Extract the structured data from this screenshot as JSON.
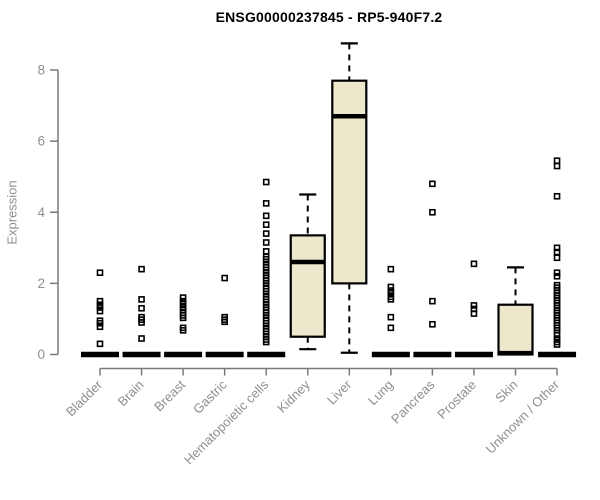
{
  "chart_data": {
    "type": "boxplot",
    "title": "ENSG00000237845 - RP5-940F7.2",
    "ylabel": "Expression",
    "xlabel": "",
    "yticks": [
      0,
      2,
      4,
      6,
      8
    ],
    "ylim": [
      0,
      8.9
    ],
    "grid": false,
    "legend": false,
    "categories": [
      "Bladder",
      "Brain",
      "Breast",
      "Gastric",
      "Hematopoietic cells",
      "Kidney",
      "Liver",
      "Lung",
      "Pancreas",
      "Prostate",
      "Skin",
      "Unknown / Other"
    ],
    "boxes": [
      {
        "category": "Bladder",
        "whisker_low": 0,
        "q1": 0,
        "median": 0,
        "q3": 0,
        "whisker_high": 0,
        "outliers": [
          2.3,
          1.5,
          1.4,
          1.32,
          1.22,
          0.95,
          0.88,
          0.78,
          0.3
        ]
      },
      {
        "category": "Brain",
        "whisker_low": 0,
        "q1": 0,
        "median": 0,
        "q3": 0,
        "whisker_high": 0,
        "outliers": [
          2.4,
          1.55,
          1.3,
          1.05,
          0.98,
          0.9,
          0.45
        ]
      },
      {
        "category": "Breast",
        "whisker_low": 0,
        "q1": 0,
        "median": 0,
        "q3": 0,
        "whisker_high": 0,
        "outliers": [
          1.6,
          1.5,
          1.42,
          1.33,
          1.25,
          1.17,
          1.1,
          1.03,
          0.75,
          0.68
        ]
      },
      {
        "category": "Gastric",
        "whisker_low": 0,
        "q1": 0,
        "median": 0,
        "q3": 0,
        "whisker_high": 0,
        "outliers": [
          2.15,
          1.05,
          0.98,
          0.92
        ]
      },
      {
        "category": "Hematopoietic cells",
        "whisker_low": 0,
        "q1": 0,
        "median": 0,
        "q3": 0,
        "whisker_high": 0,
        "outliers": [
          4.85,
          4.25,
          3.9,
          3.65,
          3.4,
          3.15,
          2.9,
          2.75,
          2.68,
          2.6,
          2.52,
          2.45,
          2.38,
          2.3,
          2.22,
          2.15,
          2.08,
          2.0,
          1.92,
          1.85,
          1.78,
          1.7,
          1.62,
          1.55,
          1.48,
          1.4,
          1.32,
          1.25,
          1.18,
          1.1,
          1.02,
          0.95,
          0.88,
          0.8,
          0.72,
          0.65,
          0.58,
          0.5,
          0.42,
          0.35
        ]
      },
      {
        "category": "Kidney",
        "whisker_low": 0.15,
        "q1": 0.5,
        "median": 2.6,
        "q3": 3.35,
        "whisker_high": 4.5,
        "outliers": []
      },
      {
        "category": "Liver",
        "whisker_low": 0.05,
        "q1": 2.0,
        "median": 6.7,
        "q3": 7.7,
        "whisker_high": 8.75,
        "outliers": []
      },
      {
        "category": "Lung",
        "whisker_low": 0,
        "q1": 0,
        "median": 0,
        "q3": 0,
        "whisker_high": 0,
        "outliers": [
          2.4,
          1.9,
          1.8,
          1.72,
          1.62,
          1.55,
          1.05,
          0.75
        ]
      },
      {
        "category": "Pancreas",
        "whisker_low": 0,
        "q1": 0,
        "median": 0,
        "q3": 0,
        "whisker_high": 0,
        "outliers": [
          4.8,
          4.0,
          1.5,
          0.85
        ]
      },
      {
        "category": "Prostate",
        "whisker_low": 0,
        "q1": 0,
        "median": 0,
        "q3": 0,
        "whisker_high": 0,
        "outliers": [
          2.55,
          1.38,
          1.28,
          1.15
        ]
      },
      {
        "category": "Skin",
        "whisker_low": 0,
        "q1": 0,
        "median": 0.04,
        "q3": 1.4,
        "whisker_high": 2.45,
        "outliers": []
      },
      {
        "category": "Unknown / Other",
        "whisker_low": 0,
        "q1": 0,
        "median": 0,
        "q3": 0,
        "whisker_high": 0,
        "outliers": [
          5.45,
          5.3,
          4.45,
          3.0,
          2.88,
          2.72,
          2.3,
          2.2,
          1.95,
          1.88,
          1.8,
          1.73,
          1.66,
          1.59,
          1.52,
          1.45,
          1.38,
          1.31,
          1.24,
          1.17,
          1.1,
          1.03,
          0.96,
          0.89,
          0.82,
          0.75,
          0.68,
          0.55,
          0.45,
          0.35,
          0.28
        ]
      }
    ],
    "colors": {
      "box_fill": "#EDE7CB",
      "box_stroke": "#000000",
      "median": "#000000",
      "outlier": "#000000",
      "zero_bar": "#000000",
      "axis_line": "#7a7a7a",
      "axis_text": "#8f8f8f",
      "title_text": "#000000",
      "background": "#ffffff"
    }
  }
}
